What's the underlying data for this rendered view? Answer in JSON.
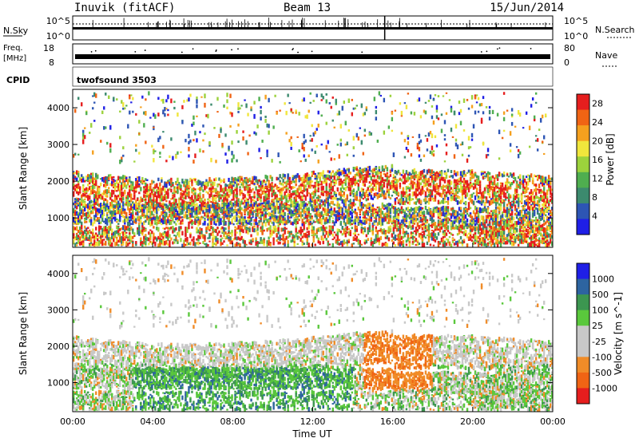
{
  "header": {
    "station": "Inuvik (fitACF)",
    "beam": "Beam 13",
    "date": "15/Jun/2014"
  },
  "summary": {
    "nsky_label": "N.Sky",
    "nsearch_label": "N.Search",
    "noise_ticks": [
      "10^5",
      "10^0"
    ],
    "freq_label": "Freq.",
    "freq_unit": "[MHz]",
    "freq_ticks": [
      "18",
      "8"
    ],
    "nave_label": "Nave",
    "nave_ticks": [
      "80",
      "0"
    ],
    "cpid_label": "CPID",
    "cpid_value": "twofsound 3503"
  },
  "colors": {
    "power": [
      "#1f1fe6",
      "#2d55b4",
      "#3c8a6e",
      "#4fae4f",
      "#9cd23c",
      "#f0e63c",
      "#f5a01e",
      "#f06414",
      "#e61e1e"
    ],
    "velocity": [
      "#e61e1e",
      "#f06414",
      "#f08c28",
      "#c8c8c8",
      "#c8c8c8",
      "#5ac83c",
      "#3c9650",
      "#2d64a0",
      "#1f1fe6"
    ]
  },
  "chart_data": [
    {
      "type": "heatmap",
      "panel": "power",
      "ylabel": "Slant Range [km]",
      "yticks": [
        1000,
        2000,
        3000,
        4000
      ],
      "ylim": [
        200,
        4500
      ],
      "xlim": [
        0,
        24
      ],
      "colorbar_label": "Power [dB]",
      "colorbar_ticks": [
        4,
        8,
        12,
        16,
        20,
        24,
        28
      ],
      "colorbar_range": [
        0,
        30
      ]
    },
    {
      "type": "heatmap",
      "panel": "velocity",
      "ylabel": "Slant Range [km]",
      "yticks": [
        1000,
        2000,
        3000,
        4000
      ],
      "ylim": [
        200,
        4500
      ],
      "xlim": [
        0,
        24
      ],
      "colorbar_label": "Velocity [m s^-1]",
      "colorbar_ticks": [
        "1000",
        "500",
        "100",
        "25",
        "-25",
        "-100",
        "-500",
        "-1000"
      ]
    }
  ],
  "xaxis": {
    "ticks": [
      "00:00",
      "04:00",
      "08:00",
      "12:00",
      "16:00",
      "20:00",
      "00:00"
    ],
    "label": "Time UT"
  }
}
